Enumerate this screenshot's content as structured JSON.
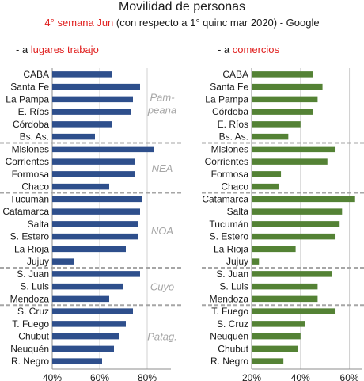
{
  "title": "Movilidad de personas",
  "subtitle": {
    "highlight": "4° semana Jun",
    "rest": " (con respecto a  1° quinc mar 2020) - Google"
  },
  "chart_data": [
    {
      "type": "bar",
      "panel_prefix": "- a ",
      "panel_title": "lugares trabajo",
      "color": "#2e4f8c",
      "categories": [
        "CABA",
        "Santa Fe",
        "La Pampa",
        "E. Ríos",
        "Córdoba",
        "Bs. As.",
        "Misiones",
        "Corrientes",
        "Formosa",
        "Chaco",
        "Tucumán",
        "Catamarca",
        "Salta",
        "S. Estero",
        "La Rioja",
        "Jujuy",
        "S. Juan",
        "S. Luis",
        "Mendoza",
        "S. Cruz",
        "T. Fuego",
        "Chubut",
        "Neuquén",
        "R. Negro"
      ],
      "values": [
        65,
        77,
        74,
        73,
        65,
        58,
        83,
        75,
        75,
        64,
        78,
        77,
        76,
        76,
        71,
        49,
        77,
        70,
        64,
        74,
        71,
        68,
        66,
        61
      ],
      "xlim": [
        40,
        90
      ],
      "xticks": [
        "40%",
        "60%",
        "80%"
      ],
      "xtick_values": [
        40,
        60,
        80
      ],
      "regions": [
        {
          "name": "Pam-",
          "name2": "peana",
          "start": 0,
          "end": 5
        },
        {
          "name": "NEA",
          "start": 6,
          "end": 9
        },
        {
          "name": "NOA",
          "start": 10,
          "end": 15
        },
        {
          "name": "Cuyo",
          "start": 16,
          "end": 18
        },
        {
          "name": "Patag.",
          "start": 19,
          "end": 23
        }
      ]
    },
    {
      "type": "bar",
      "panel_prefix": "- a ",
      "panel_title": "comercios",
      "color": "#548235",
      "categories": [
        "CABA",
        "Santa Fe",
        "La Pampa",
        "Córdoba",
        "E. Ríos",
        "Bs. As.",
        "Misiones",
        "Corrientes",
        "Formosa",
        "Chaco",
        "Catamarca",
        "Salta",
        "Tucumán",
        "S. Estero",
        "La Rioja",
        "Jujuy",
        "S. Juan",
        "S. Luis",
        "Mendoza",
        "T. Fuego",
        "S. Cruz",
        "Neuquén",
        "Chubut",
        "R. Negro"
      ],
      "values": [
        45,
        49,
        47,
        45,
        40,
        35,
        54,
        51,
        32,
        31,
        62,
        57,
        56,
        54,
        38,
        23,
        53,
        47,
        47,
        54,
        42,
        40,
        39,
        33
      ],
      "xlim": [
        20,
        65
      ],
      "xticks": [
        "20%",
        "40%",
        "60%"
      ],
      "xtick_values": [
        20,
        40,
        60
      ]
    }
  ]
}
